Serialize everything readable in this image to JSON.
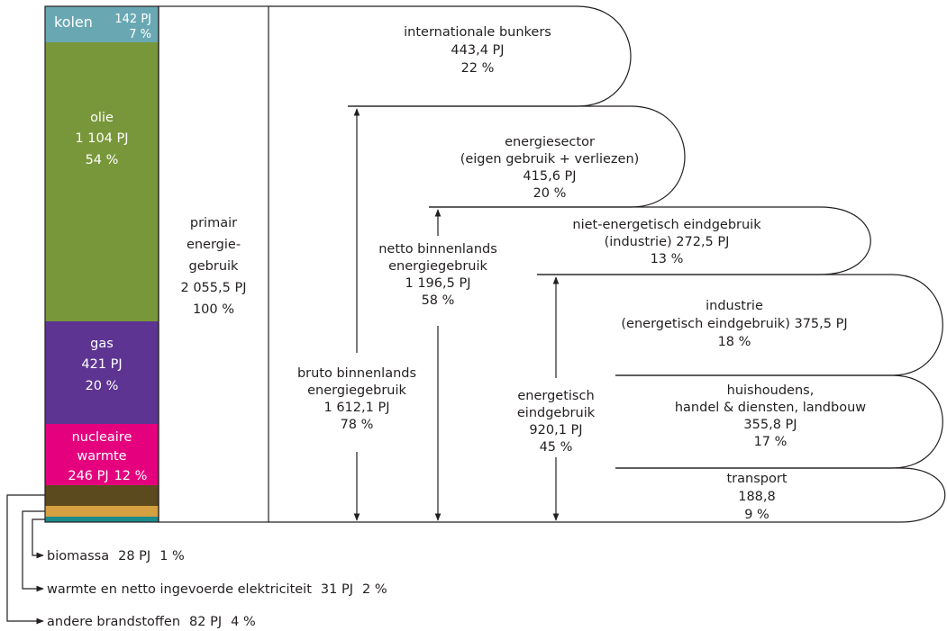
{
  "bar": {
    "kolen": {
      "name": "kolen",
      "amount": "142 PJ",
      "share": "7 %"
    },
    "olie": {
      "name": "olie",
      "amount": "1 104 PJ",
      "share": "54 %"
    },
    "gas": {
      "name": "gas",
      "amount": "421 PJ",
      "share": "20 %"
    },
    "nucleair": {
      "name": [
        "nucleaire",
        "warmte"
      ],
      "amount": "246 PJ",
      "share": "12 %"
    }
  },
  "primary": [
    "primair",
    "energie-",
    "gebruik",
    "2 055,5 PJ",
    "100 %"
  ],
  "flows": {
    "bunkers": [
      "internationale bunkers",
      "443,4 PJ",
      "22 %"
    ],
    "energiesector": [
      "energiesector",
      "(eigen gebruik + verliezen)",
      "415,6 PJ",
      "20 %"
    ],
    "niet_energetisch": [
      "niet-energetisch eindgebruik",
      "(industrie) 272,5 PJ",
      "13 %"
    ],
    "industrie": [
      "industrie",
      "(energetisch eindgebruik) 375,5 PJ",
      "18 %"
    ],
    "huishoudens": [
      "huishoudens,",
      "handel & diensten, landbouw",
      "355,8 PJ",
      "17 %"
    ],
    "transport": [
      "transport",
      "188,8",
      "9 %"
    ]
  },
  "measures": {
    "bruto": [
      "bruto binnenlands",
      "energiegebruik",
      "1 612,1 PJ",
      "78 %"
    ],
    "netto": [
      "netto binnenlands",
      "energiegebruik",
      "1 196,5 PJ",
      "58 %"
    ],
    "energetisch": [
      "energetisch",
      "eindgebruik",
      "920,1 PJ",
      "45 %"
    ]
  },
  "legend": [
    {
      "name": "biomassa",
      "amount": "28 PJ",
      "share": "1 %"
    },
    {
      "name": "warmte en netto ingevoerde elektriciteit",
      "amount": "31 PJ",
      "share": "2 %"
    },
    {
      "name": "andere brandstoffen",
      "amount": "82 PJ",
      "share": "4 %"
    }
  ]
}
